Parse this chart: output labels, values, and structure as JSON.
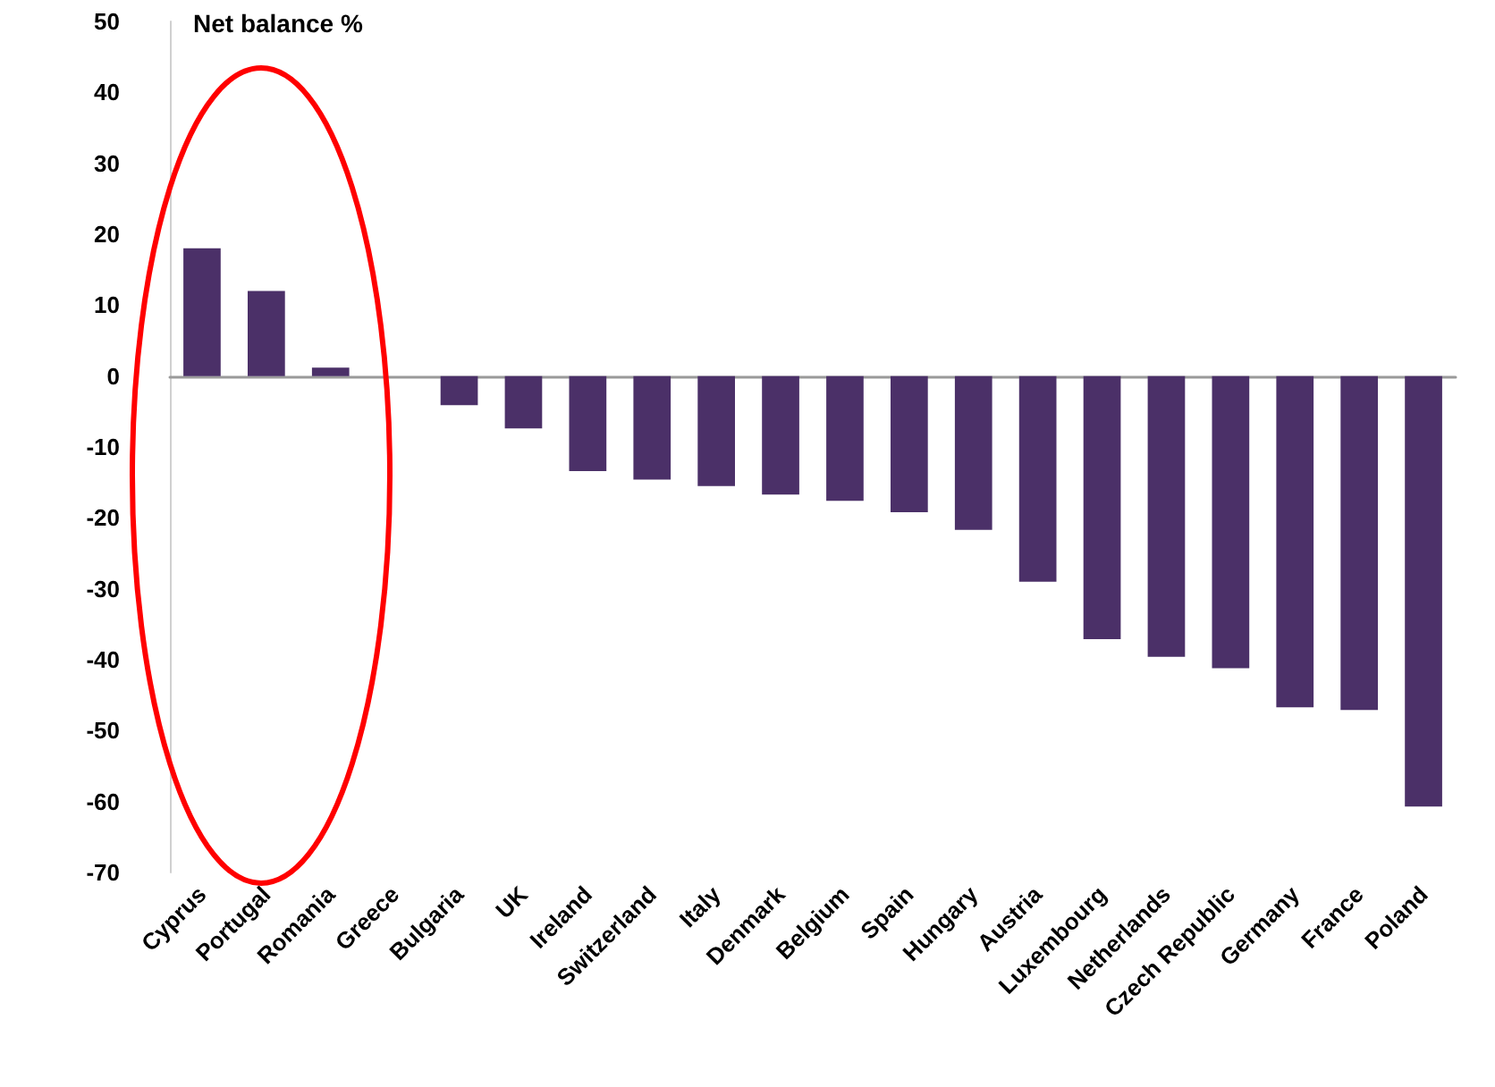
{
  "chart_data": {
    "type": "bar",
    "ylabel": "Net balance %",
    "categories": [
      "Cyprus",
      "Portugal",
      "Romania",
      "Greece",
      "Bulgaria",
      "UK",
      "Ireland",
      "Switzerland",
      "Italy",
      "Denmark",
      "Belgium",
      "Spain",
      "Hungary",
      "Austria",
      "Luxembourg",
      "Netherlands",
      "Czech Republic",
      "Germany",
      "France",
      "Poland"
    ],
    "values": [
      18,
      12,
      1.2,
      0,
      -4.1,
      -7.4,
      -13.4,
      -14.6,
      -15.5,
      -16.7,
      -17.6,
      -19.2,
      -21.7,
      -29,
      -37.1,
      -39.6,
      -41.2,
      -46.7,
      -47.1,
      -60.7
    ],
    "color": "#4b3068",
    "ylim": [
      -70,
      50
    ],
    "yticks": [
      -70,
      -60,
      -50,
      -40,
      -30,
      -20,
      -10,
      0,
      10,
      20,
      30,
      40,
      50
    ]
  }
}
